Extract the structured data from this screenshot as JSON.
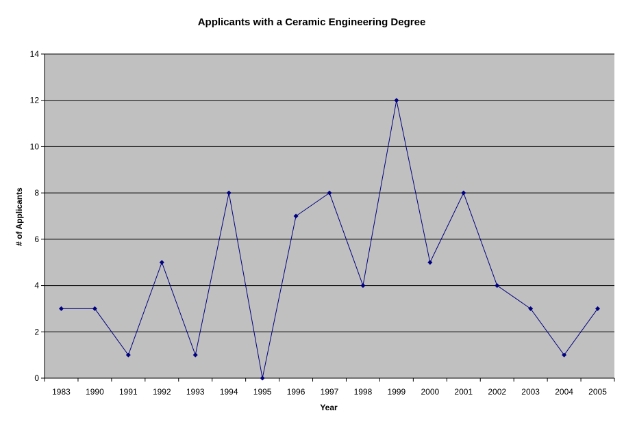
{
  "chart_data": {
    "type": "line",
    "title": "Applicants with a Ceramic Engineering Degree",
    "xlabel": "Year",
    "ylabel": "# of Applicants",
    "categories": [
      "1983",
      "1990",
      "1991",
      "1992",
      "1993",
      "1994",
      "1995",
      "1996",
      "1997",
      "1998",
      "1999",
      "2000",
      "2001",
      "2002",
      "2003",
      "2004",
      "2005"
    ],
    "series": [
      {
        "values": [
          3,
          3,
          1,
          5,
          1,
          8,
          0,
          7,
          8,
          4,
          12,
          5,
          8,
          4,
          3,
          1,
          3
        ]
      }
    ],
    "ylim": [
      0,
      14
    ],
    "yticks": [
      0,
      2,
      4,
      6,
      8,
      10,
      12,
      14
    ],
    "grid": true,
    "legend": "none",
    "colors": {
      "plot_background": "#c0c0c0",
      "line": "#000080",
      "marker": "#000080",
      "gridline": "#000000",
      "axis": "#000000"
    }
  }
}
